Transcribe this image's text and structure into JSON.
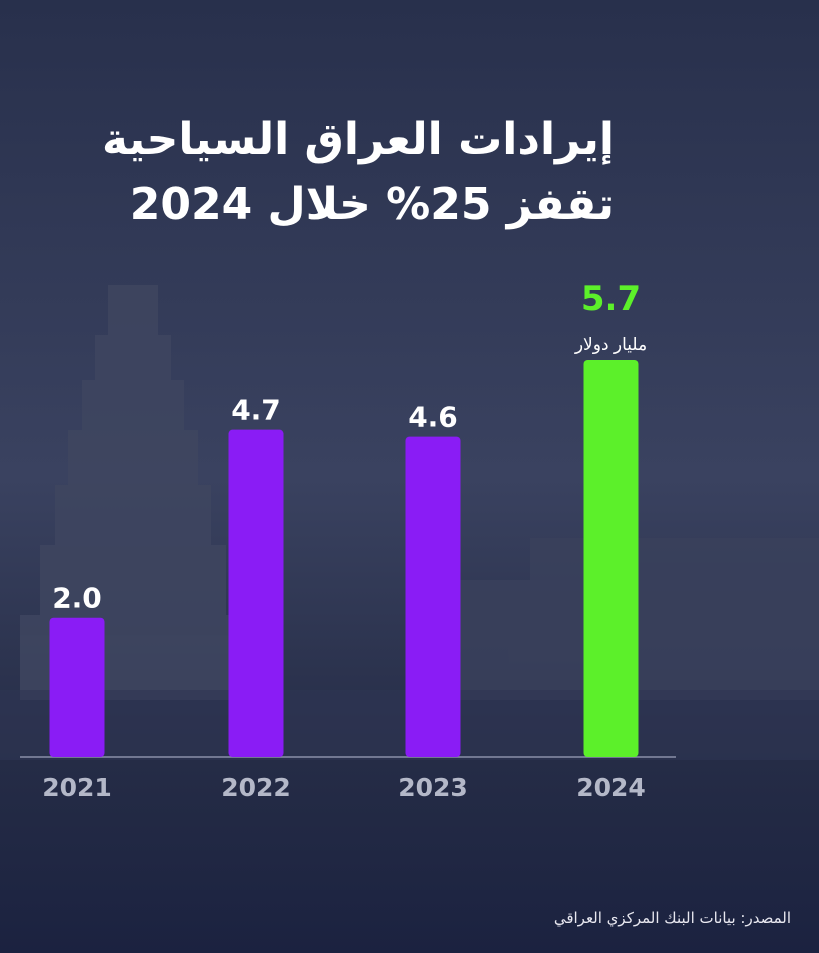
{
  "chart_data": {
    "type": "bar",
    "title": "إيرادات العراق السياحية",
    "subtitle": "تقفز 25% خلال 2024",
    "categories": [
      "2021",
      "2022",
      "2023",
      "2024"
    ],
    "values": [
      2.0,
      4.7,
      4.6,
      5.7
    ],
    "value_labels": [
      "2.0",
      "4.7",
      "4.6",
      "5.7"
    ],
    "unit_label": "مليار دولار",
    "ylim": [
      0,
      5.7
    ],
    "grid": false,
    "colors": {
      "default": "#8a1cf5",
      "highlight": "#5cf02a",
      "background": "#262d48"
    },
    "highlight_index": 3,
    "source": "المصدر: بيانات البنك المركزي العراقي"
  }
}
